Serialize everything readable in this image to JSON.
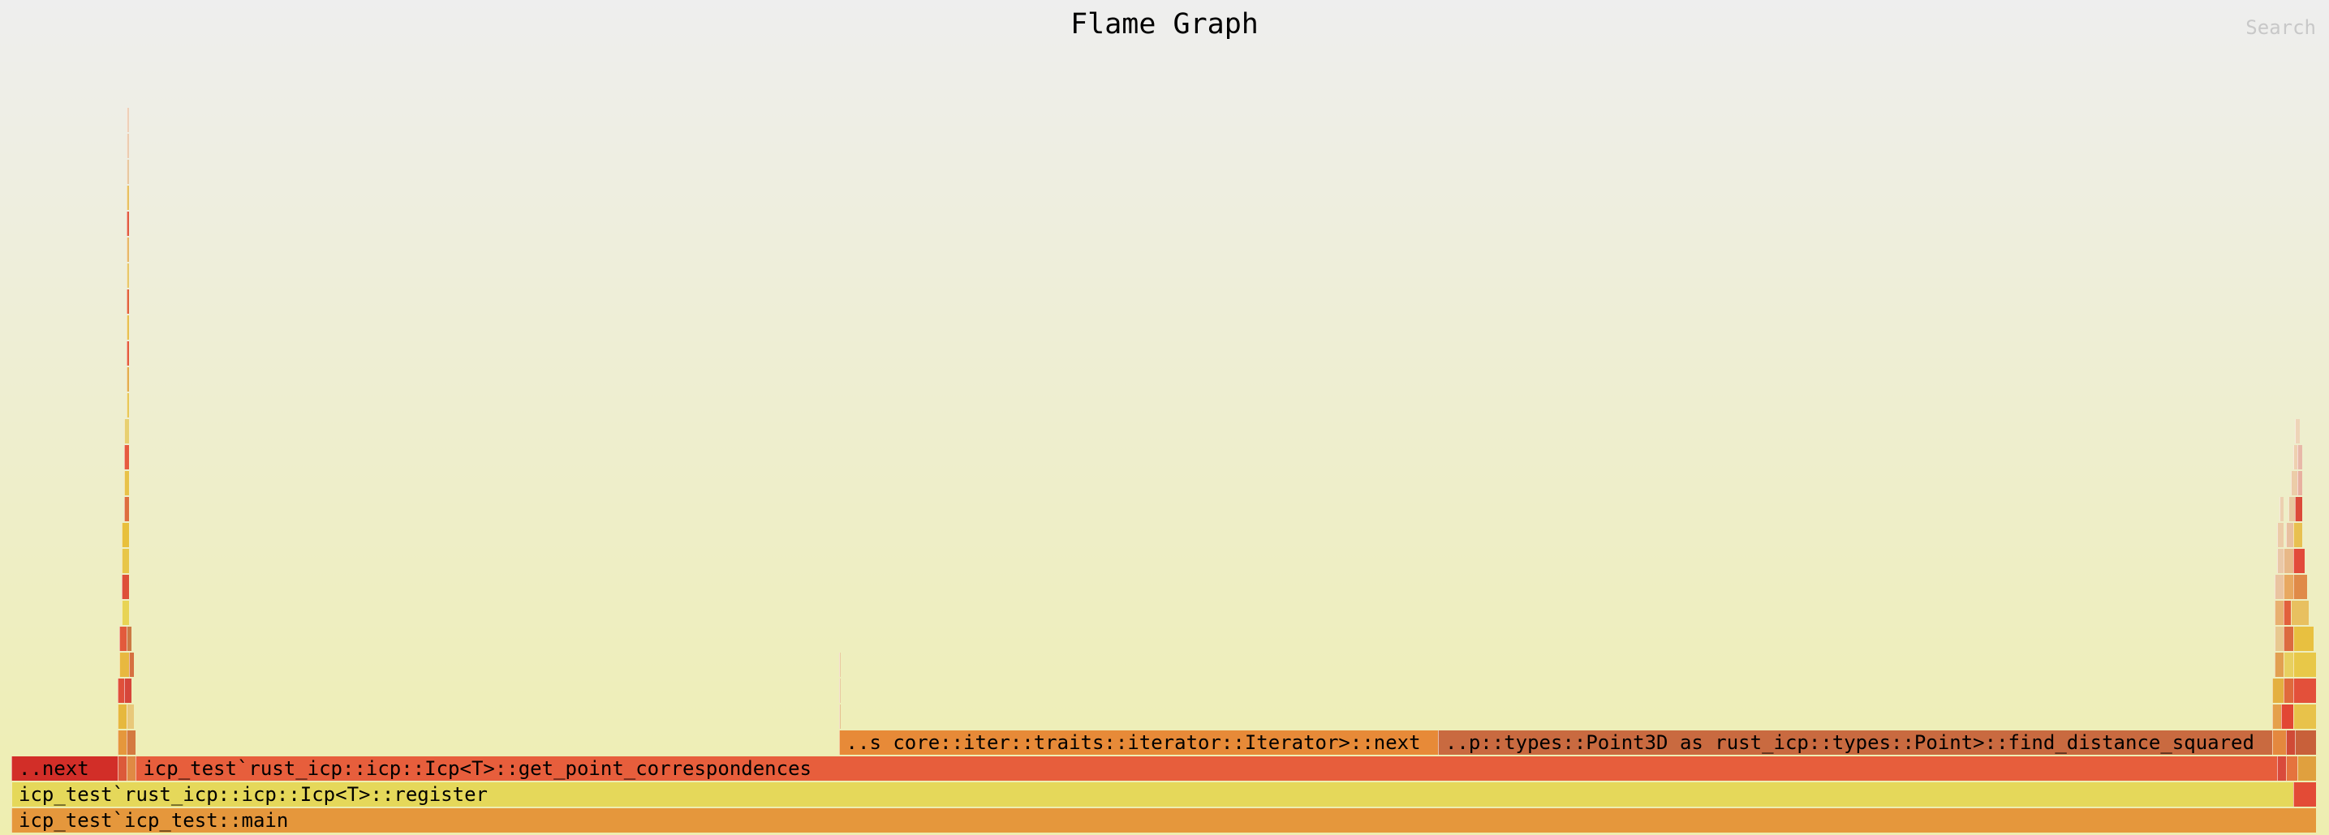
{
  "title": "Flame Graph",
  "search_label": "Search",
  "frames": [
    {
      "depth": 0,
      "start": 0.0,
      "width": 1.0,
      "color": "#e5973c",
      "label": "icp_test`icp_test::main"
    },
    {
      "depth": 1,
      "start": 0.0,
      "width": 0.99,
      "color": "#e5d85a",
      "label": "icp_test`rust_icp::icp::Icp<T>::register"
    },
    {
      "depth": 1,
      "start": 0.99,
      "width": 0.01,
      "color": "#e34b36",
      "label": ""
    },
    {
      "depth": 2,
      "start": 0.0,
      "width": 0.046,
      "color": "#d22e28",
      "label": "..next"
    },
    {
      "depth": 2,
      "start": 0.046,
      "width": 0.004,
      "color": "#dc5a3a",
      "label": ""
    },
    {
      "depth": 2,
      "start": 0.05,
      "width": 0.004,
      "color": "#e08a44",
      "label": ""
    },
    {
      "depth": 2,
      "start": 0.054,
      "width": 0.929,
      "color": "#e75e3c",
      "label": "icp_test`rust_icp::icp::Icp<T>::get_point_correspondences"
    },
    {
      "depth": 2,
      "start": 0.983,
      "width": 0.004,
      "color": "#d94a3c",
      "label": ""
    },
    {
      "depth": 2,
      "start": 0.987,
      "width": 0.005,
      "color": "#e5733e",
      "label": ""
    },
    {
      "depth": 2,
      "start": 0.992,
      "width": 0.008,
      "color": "#e0a03e",
      "label": ""
    },
    {
      "depth": 3,
      "start": 0.046,
      "width": 0.004,
      "color": "#e5973c",
      "label": ""
    },
    {
      "depth": 3,
      "start": 0.05,
      "width": 0.004,
      "color": "#d47a40",
      "label": ""
    },
    {
      "depth": 3,
      "start": 0.359,
      "width": 0.26,
      "color": "#e78a38",
      "label": "..s core::iter::traits::iterator::Iterator>::next"
    },
    {
      "depth": 3,
      "start": 0.619,
      "width": 0.362,
      "color": "#c96a40",
      "label": "..p::types::Point3D as rust_icp::types::Point>::find_distance_squared"
    },
    {
      "depth": 3,
      "start": 0.981,
      "width": 0.006,
      "color": "#e4883e",
      "label": ""
    },
    {
      "depth": 3,
      "start": 0.987,
      "width": 0.004,
      "color": "#d04a36",
      "label": ""
    },
    {
      "depth": 3,
      "start": 0.991,
      "width": 0.009,
      "color": "#c8603a",
      "label": ""
    },
    {
      "depth": 4,
      "start": 0.046,
      "width": 0.004,
      "color": "#e6b83e",
      "label": ""
    },
    {
      "depth": 4,
      "start": 0.05,
      "width": 0.003,
      "color": "#e8c87a",
      "label": ""
    },
    {
      "depth": 4,
      "start": 0.359,
      "width": 0.001,
      "color": "#e6c090",
      "label": ""
    },
    {
      "depth": 4,
      "start": 0.981,
      "width": 0.004,
      "color": "#e5a04a",
      "label": ""
    },
    {
      "depth": 4,
      "start": 0.985,
      "width": 0.005,
      "color": "#e24634",
      "label": ""
    },
    {
      "depth": 4,
      "start": 0.99,
      "width": 0.01,
      "color": "#e8c24a",
      "label": ""
    },
    {
      "depth": 5,
      "start": 0.046,
      "width": 0.003,
      "color": "#e0503a",
      "label": ""
    },
    {
      "depth": 5,
      "start": 0.049,
      "width": 0.003,
      "color": "#d6463a",
      "label": ""
    },
    {
      "depth": 5,
      "start": 0.359,
      "width": 0.001,
      "color": "#e8c8a0",
      "label": ""
    },
    {
      "depth": 5,
      "start": 0.981,
      "width": 0.005,
      "color": "#e4b040",
      "label": ""
    },
    {
      "depth": 5,
      "start": 0.986,
      "width": 0.004,
      "color": "#e06a3c",
      "label": ""
    },
    {
      "depth": 5,
      "start": 0.99,
      "width": 0.01,
      "color": "#e3503a",
      "label": ""
    },
    {
      "depth": 6,
      "start": 0.047,
      "width": 0.004,
      "color": "#e8b840",
      "label": ""
    },
    {
      "depth": 6,
      "start": 0.051,
      "width": 0.002,
      "color": "#d67040",
      "label": ""
    },
    {
      "depth": 6,
      "start": 0.359,
      "width": 0.001,
      "color": "#eac8a0",
      "label": ""
    },
    {
      "depth": 6,
      "start": 0.982,
      "width": 0.004,
      "color": "#e2a050",
      "label": ""
    },
    {
      "depth": 6,
      "start": 0.986,
      "width": 0.004,
      "color": "#e8d060",
      "label": ""
    },
    {
      "depth": 6,
      "start": 0.99,
      "width": 0.01,
      "color": "#e8c848",
      "label": ""
    },
    {
      "depth": 7,
      "start": 0.047,
      "width": 0.003,
      "color": "#e25a3c",
      "label": ""
    },
    {
      "depth": 7,
      "start": 0.05,
      "width": 0.002,
      "color": "#cc7a44",
      "label": ""
    },
    {
      "depth": 7,
      "start": 0.982,
      "width": 0.004,
      "color": "#e8c890",
      "label": ""
    },
    {
      "depth": 7,
      "start": 0.986,
      "width": 0.004,
      "color": "#dc6a40",
      "label": ""
    },
    {
      "depth": 7,
      "start": 0.99,
      "width": 0.009,
      "color": "#e8c040",
      "label": ""
    },
    {
      "depth": 8,
      "start": 0.048,
      "width": 0.003,
      "color": "#e8d454",
      "label": ""
    },
    {
      "depth": 8,
      "start": 0.982,
      "width": 0.004,
      "color": "#e8b070",
      "label": ""
    },
    {
      "depth": 8,
      "start": 0.986,
      "width": 0.003,
      "color": "#e2603c",
      "label": ""
    },
    {
      "depth": 8,
      "start": 0.989,
      "width": 0.008,
      "color": "#e8c060",
      "label": ""
    },
    {
      "depth": 9,
      "start": 0.048,
      "width": 0.003,
      "color": "#de5038",
      "label": ""
    },
    {
      "depth": 9,
      "start": 0.982,
      "width": 0.004,
      "color": "#eac4a0",
      "label": ""
    },
    {
      "depth": 9,
      "start": 0.986,
      "width": 0.004,
      "color": "#e8a860",
      "label": ""
    },
    {
      "depth": 9,
      "start": 0.99,
      "width": 0.006,
      "color": "#e08a48",
      "label": ""
    },
    {
      "depth": 10,
      "start": 0.048,
      "width": 0.003,
      "color": "#e8c648",
      "label": ""
    },
    {
      "depth": 10,
      "start": 0.983,
      "width": 0.003,
      "color": "#eac8a8",
      "label": ""
    },
    {
      "depth": 10,
      "start": 0.986,
      "width": 0.004,
      "color": "#e8b888",
      "label": ""
    },
    {
      "depth": 10,
      "start": 0.99,
      "width": 0.005,
      "color": "#e24a3a",
      "label": ""
    },
    {
      "depth": 11,
      "start": 0.048,
      "width": 0.003,
      "color": "#e8c03c",
      "label": ""
    },
    {
      "depth": 11,
      "start": 0.983,
      "width": 0.003,
      "color": "#eccca8",
      "label": ""
    },
    {
      "depth": 11,
      "start": 0.987,
      "width": 0.003,
      "color": "#e8c0a0",
      "label": ""
    },
    {
      "depth": 11,
      "start": 0.99,
      "width": 0.004,
      "color": "#e8c050",
      "label": ""
    },
    {
      "depth": 12,
      "start": 0.049,
      "width": 0.002,
      "color": "#de6e3e",
      "label": ""
    },
    {
      "depth": 12,
      "start": 0.984,
      "width": 0.002,
      "color": "#ecd0b0",
      "label": ""
    },
    {
      "depth": 12,
      "start": 0.988,
      "width": 0.003,
      "color": "#e8c8a0",
      "label": ""
    },
    {
      "depth": 12,
      "start": 0.991,
      "width": 0.003,
      "color": "#dc4a3a",
      "label": ""
    },
    {
      "depth": 13,
      "start": 0.049,
      "width": 0.002,
      "color": "#e8c248",
      "label": ""
    },
    {
      "depth": 13,
      "start": 0.989,
      "width": 0.003,
      "color": "#eccca8",
      "label": ""
    },
    {
      "depth": 13,
      "start": 0.992,
      "width": 0.002,
      "color": "#e8b0a0",
      "label": ""
    },
    {
      "depth": 14,
      "start": 0.049,
      "width": 0.002,
      "color": "#e65a3e",
      "label": ""
    },
    {
      "depth": 14,
      "start": 0.99,
      "width": 0.002,
      "color": "#eed0b0",
      "label": ""
    },
    {
      "depth": 14,
      "start": 0.992,
      "width": 0.002,
      "color": "#e8b8a8",
      "label": ""
    },
    {
      "depth": 15,
      "start": 0.049,
      "width": 0.002,
      "color": "#e8d070",
      "label": ""
    },
    {
      "depth": 15,
      "start": 0.991,
      "width": 0.002,
      "color": "#eed4b8",
      "label": ""
    },
    {
      "depth": 16,
      "start": 0.05,
      "width": 0.001,
      "color": "#e8c858",
      "label": ""
    },
    {
      "depth": 17,
      "start": 0.05,
      "width": 0.001,
      "color": "#e4ad4c",
      "label": ""
    },
    {
      "depth": 18,
      "start": 0.05,
      "width": 0.001,
      "color": "#e55a3c",
      "label": ""
    },
    {
      "depth": 19,
      "start": 0.05,
      "width": 0.001,
      "color": "#e8c050",
      "label": ""
    },
    {
      "depth": 20,
      "start": 0.05,
      "width": 0.001,
      "color": "#e2603a",
      "label": ""
    },
    {
      "depth": 21,
      "start": 0.05,
      "width": 0.001,
      "color": "#e8c86a",
      "label": ""
    },
    {
      "depth": 22,
      "start": 0.05,
      "width": 0.001,
      "color": "#e8b868",
      "label": ""
    },
    {
      "depth": 23,
      "start": 0.05,
      "width": 0.001,
      "color": "#e25a40",
      "label": ""
    },
    {
      "depth": 24,
      "start": 0.05,
      "width": 0.001,
      "color": "#e8c060",
      "label": ""
    },
    {
      "depth": 25,
      "start": 0.05,
      "width": 0.001,
      "color": "#e8c8a0",
      "label": ""
    },
    {
      "depth": 26,
      "start": 0.05,
      "width": 0.001,
      "color": "#ecccb0",
      "label": ""
    },
    {
      "depth": 27,
      "start": 0.05,
      "width": 0.001,
      "color": "#eed0b8",
      "label": ""
    }
  ]
}
